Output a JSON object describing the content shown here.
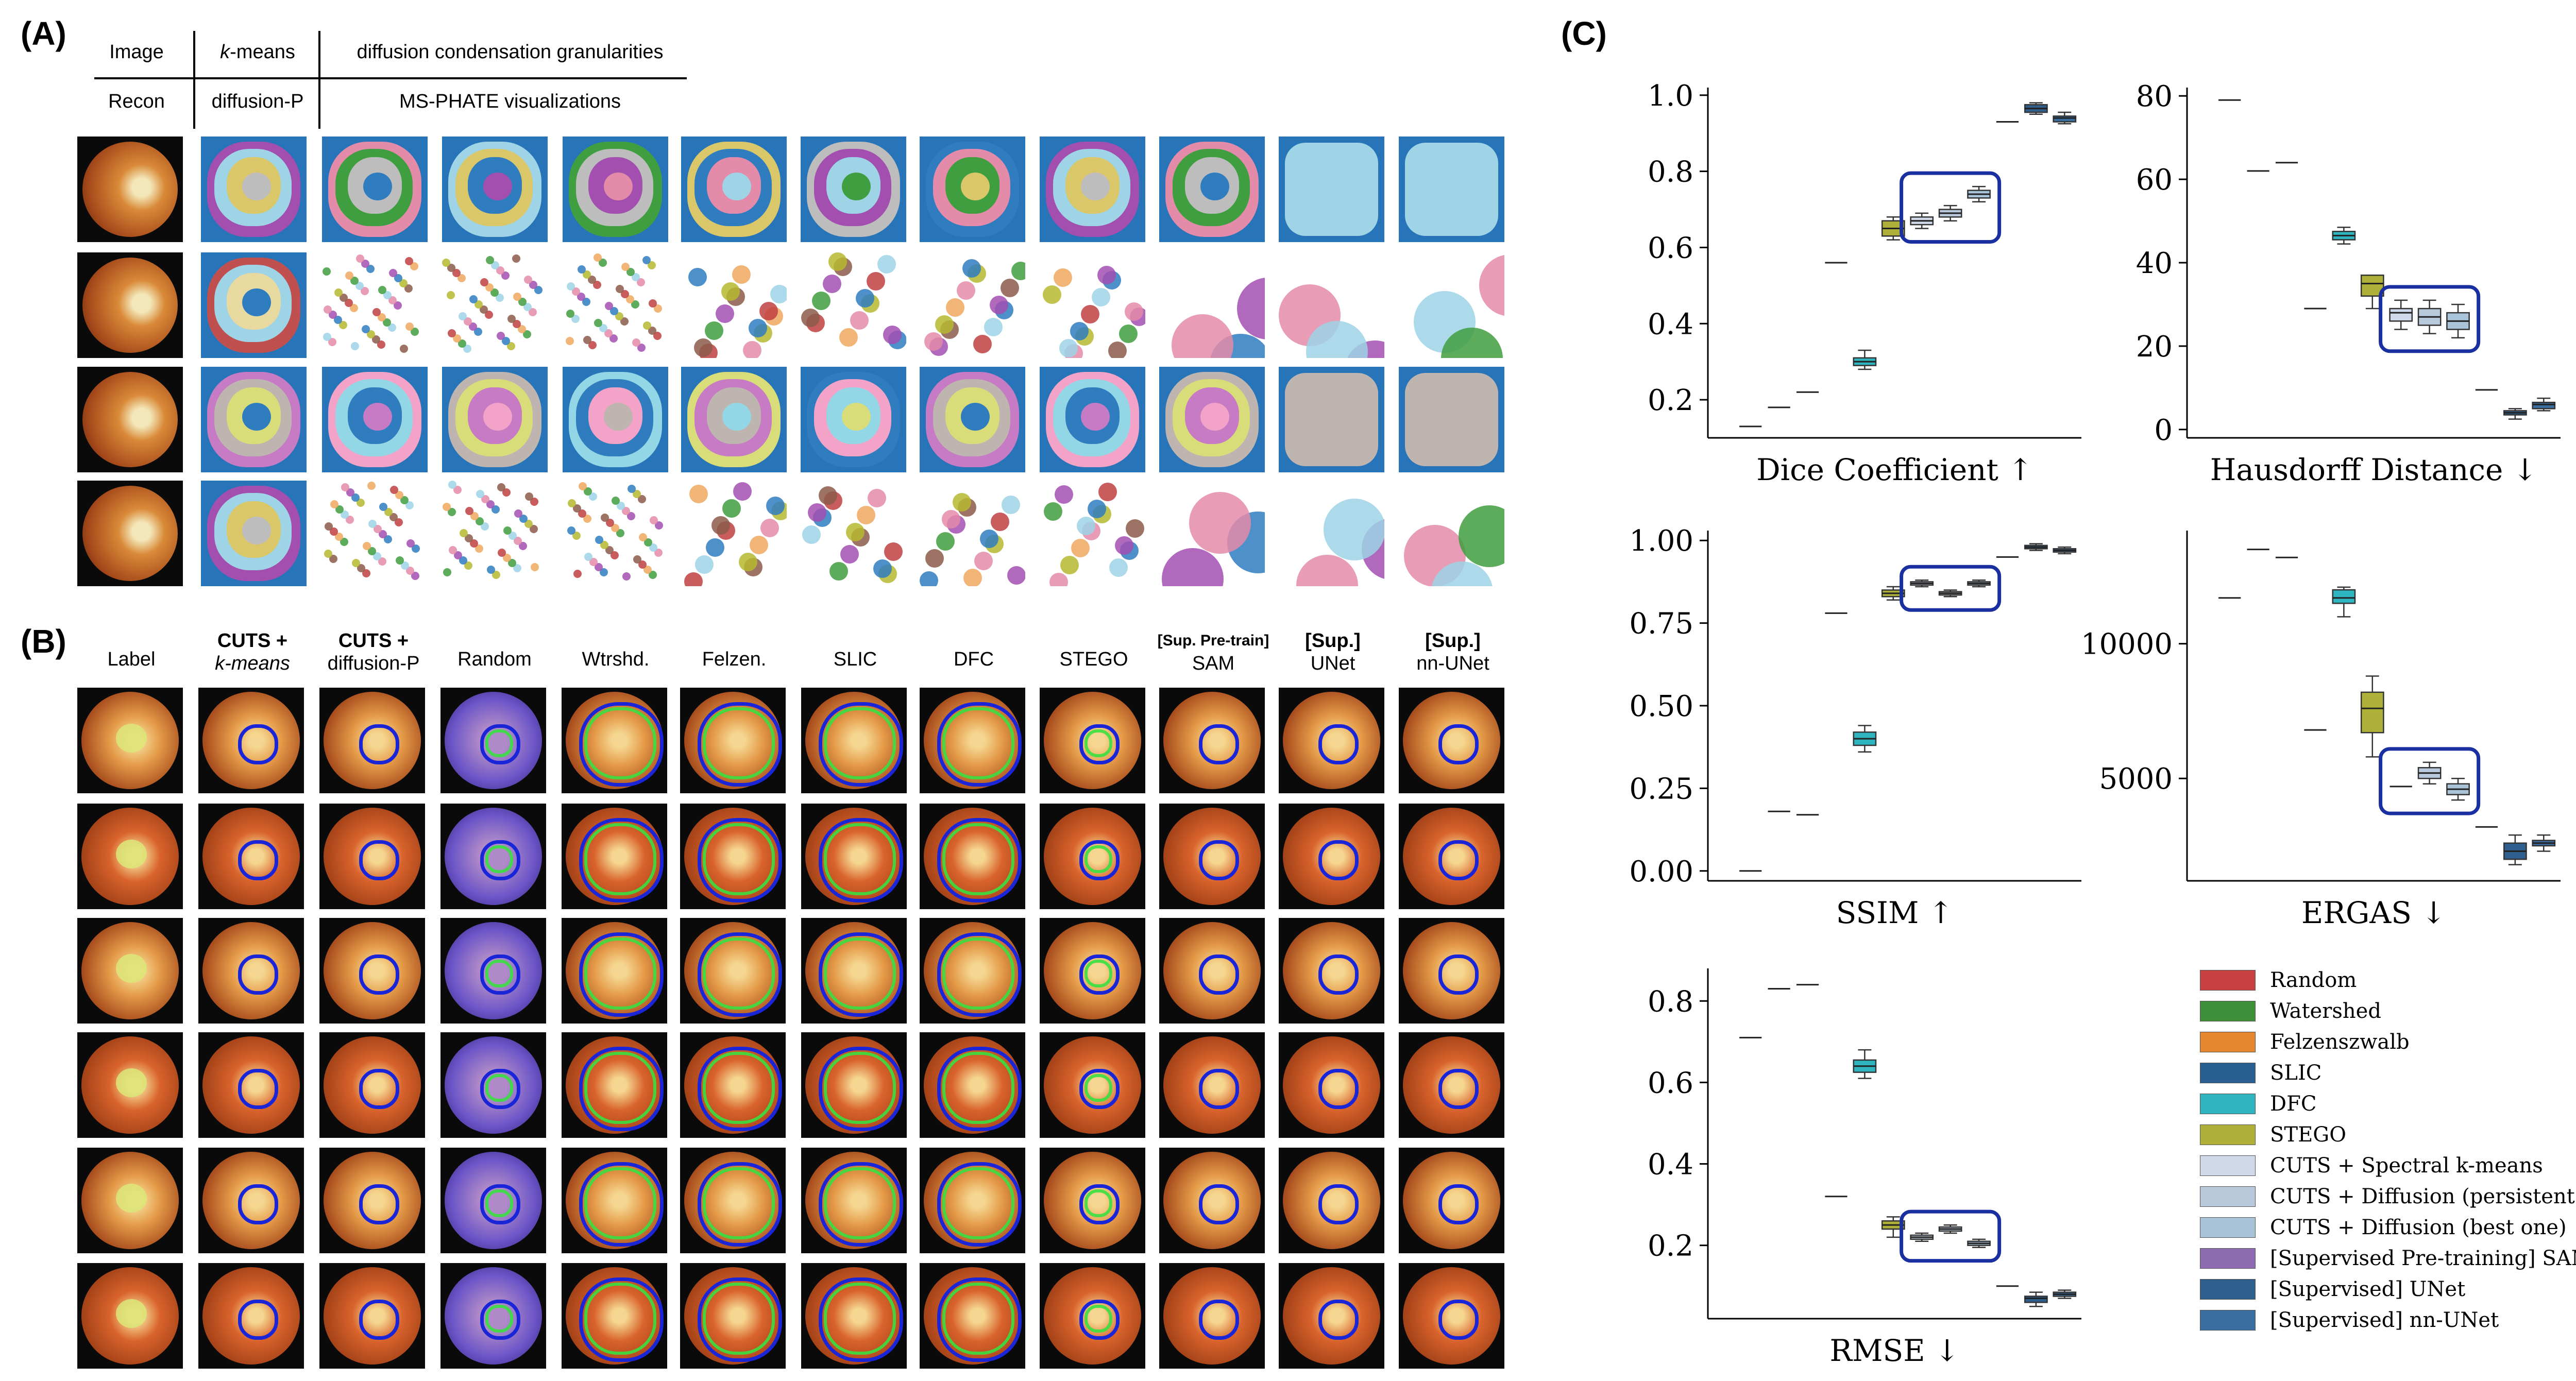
{
  "panel_labels": {
    "a": "(A)",
    "b": "(B)",
    "c": "(C)"
  },
  "panel_a": {
    "headers": {
      "image": "Image",
      "kmeans_prefix": "k",
      "kmeans_suffix": "-means",
      "diffusion_granularities": "diffusion condensation granularities",
      "recon": "Recon",
      "diffusion_p": "diffusion-P",
      "ms_phate": "MS-PHATE visualizations"
    }
  },
  "panel_b": {
    "columns": [
      {
        "line1": "Label",
        "line2": ""
      },
      {
        "line1": "CUTS +",
        "line2": "k-means"
      },
      {
        "line1": "CUTS +",
        "line2": "diffusion-P"
      },
      {
        "line1": "Random",
        "line2": ""
      },
      {
        "line1": "Wtrshd.",
        "line2": ""
      },
      {
        "line1": "Felzen.",
        "line2": ""
      },
      {
        "line1": "SLIC",
        "line2": ""
      },
      {
        "line1": "DFC",
        "line2": ""
      },
      {
        "line1": "STEGO",
        "line2": ""
      },
      {
        "line1": "[Sup. Pre-train]",
        "line2": "SAM"
      },
      {
        "line1": "[Sup.]",
        "line2": "UNet"
      },
      {
        "line1": "[Sup.]",
        "line2": "nn-UNet"
      }
    ]
  },
  "colors": {
    "random": "#c94040",
    "watershed": "#3f8f3a",
    "felzenszwalb": "#e6862e",
    "slic": "#2a5f91",
    "dfc": "#2fb5c0",
    "stego": "#aeb03a",
    "cuts_kmeans": "#cfd9ea",
    "cuts_persistent": "#b8c9dc",
    "cuts_best": "#a9c3d8",
    "sam": "#8e6bb0",
    "unet": "#2f5f8c",
    "nnunet": "#3b6ea0",
    "highlight": "#1a2fa0"
  },
  "chart_data": [
    {
      "type": "box",
      "title": "Dice Coefficient ↑",
      "ylim": [
        0.1,
        1.02
      ],
      "yticks": [
        0.2,
        0.4,
        0.6,
        0.8,
        1.0
      ],
      "ytick_labels": [
        "0.2",
        "0.4",
        "0.6",
        "0.8",
        "1.0"
      ],
      "series": [
        {
          "name": "Random",
          "median": 0.13,
          "q1": 0.13,
          "q3": 0.13,
          "lo": 0.13,
          "hi": 0.13
        },
        {
          "name": "Watershed",
          "median": 0.18,
          "q1": 0.18,
          "q3": 0.18,
          "lo": 0.18,
          "hi": 0.18
        },
        {
          "name": "Felzenszwalb",
          "median": 0.22,
          "q1": 0.22,
          "q3": 0.22,
          "lo": 0.22,
          "hi": 0.22
        },
        {
          "name": "SLIC",
          "median": 0.56,
          "q1": 0.56,
          "q3": 0.56,
          "lo": 0.56,
          "hi": 0.56
        },
        {
          "name": "DFC",
          "median": 0.3,
          "q1": 0.29,
          "q3": 0.31,
          "lo": 0.28,
          "hi": 0.33
        },
        {
          "name": "STEGO",
          "median": 0.65,
          "q1": 0.63,
          "q3": 0.67,
          "lo": 0.62,
          "hi": 0.68
        },
        {
          "name": "CUTS + Spectral k-means",
          "median": 0.67,
          "q1": 0.66,
          "q3": 0.68,
          "lo": 0.65,
          "hi": 0.69
        },
        {
          "name": "CUTS + Diffusion (persistent)",
          "median": 0.69,
          "q1": 0.68,
          "q3": 0.7,
          "lo": 0.67,
          "hi": 0.71
        },
        {
          "name": "CUTS + Diffusion (best one)",
          "median": 0.74,
          "q1": 0.73,
          "q3": 0.75,
          "lo": 0.72,
          "hi": 0.76
        },
        {
          "name": "[Supervised Pre-training] SAM",
          "median": 0.93,
          "q1": 0.93,
          "q3": 0.93,
          "lo": 0.93,
          "hi": 0.93
        },
        {
          "name": "[Supervised] UNet",
          "median": 0.965,
          "q1": 0.955,
          "q3": 0.975,
          "lo": 0.95,
          "hi": 0.98
        },
        {
          "name": "[Supervised] nn-UNet",
          "median": 0.94,
          "q1": 0.93,
          "q3": 0.945,
          "lo": 0.925,
          "hi": 0.955
        }
      ],
      "highlight_range": [
        6,
        8
      ]
    },
    {
      "type": "box",
      "title": "Hausdorff Distance ↓",
      "ylim": [
        -2,
        82
      ],
      "yticks": [
        0,
        20,
        40,
        60,
        80
      ],
      "ytick_labels": [
        "0",
        "20",
        "40",
        "60",
        "80"
      ],
      "series": [
        {
          "name": "Random",
          "median": 79,
          "q1": 79,
          "q3": 79,
          "lo": 79,
          "hi": 79
        },
        {
          "name": "Watershed",
          "median": 62,
          "q1": 62,
          "q3": 62,
          "lo": 62,
          "hi": 62
        },
        {
          "name": "Felzenszwalb",
          "median": 64,
          "q1": 64,
          "q3": 64,
          "lo": 64,
          "hi": 64
        },
        {
          "name": "SLIC",
          "median": 29,
          "q1": 29,
          "q3": 29,
          "lo": 29,
          "hi": 29
        },
        {
          "name": "DFC",
          "median": 46.5,
          "q1": 45.5,
          "q3": 47.5,
          "lo": 44.5,
          "hi": 48.5
        },
        {
          "name": "STEGO",
          "median": 35,
          "q1": 32,
          "q3": 37,
          "lo": 29,
          "hi": 37
        },
        {
          "name": "CUTS + Spectral k-means",
          "median": 28,
          "q1": 26,
          "q3": 29,
          "lo": 24,
          "hi": 31
        },
        {
          "name": "CUTS + Diffusion (persistent)",
          "median": 27,
          "q1": 25,
          "q3": 29,
          "lo": 23,
          "hi": 31
        },
        {
          "name": "CUTS + Diffusion (best one)",
          "median": 26,
          "q1": 24,
          "q3": 28,
          "lo": 22,
          "hi": 30
        },
        {
          "name": "[Supervised Pre-training] SAM",
          "median": 9.5,
          "q1": 9.5,
          "q3": 9.5,
          "lo": 9.5,
          "hi": 9.5
        },
        {
          "name": "[Supervised] UNet",
          "median": 4,
          "q1": 3.5,
          "q3": 4.5,
          "lo": 2.5,
          "hi": 5
        },
        {
          "name": "[Supervised] nn-UNet",
          "median": 6,
          "q1": 5,
          "q3": 6.5,
          "lo": 4.5,
          "hi": 7.5
        }
      ],
      "highlight_range": [
        6,
        8
      ]
    },
    {
      "type": "box",
      "title": "SSIM ↑",
      "ylim": [
        -0.03,
        1.03
      ],
      "yticks": [
        0.0,
        0.25,
        0.5,
        0.75,
        1.0
      ],
      "ytick_labels": [
        "0.00",
        "0.25",
        "0.50",
        "0.75",
        "1.00"
      ],
      "series": [
        {
          "name": "Random",
          "median": 0.0,
          "q1": 0.0,
          "q3": 0.0,
          "lo": 0.0,
          "hi": 0.0
        },
        {
          "name": "Watershed",
          "median": 0.18,
          "q1": 0.18,
          "q3": 0.18,
          "lo": 0.18,
          "hi": 0.18
        },
        {
          "name": "Felzenszwalb",
          "median": 0.17,
          "q1": 0.17,
          "q3": 0.17,
          "lo": 0.17,
          "hi": 0.17
        },
        {
          "name": "SLIC",
          "median": 0.78,
          "q1": 0.78,
          "q3": 0.78,
          "lo": 0.78,
          "hi": 0.78
        },
        {
          "name": "DFC",
          "median": 0.4,
          "q1": 0.38,
          "q3": 0.42,
          "lo": 0.36,
          "hi": 0.44
        },
        {
          "name": "STEGO",
          "median": 0.84,
          "q1": 0.83,
          "q3": 0.85,
          "lo": 0.82,
          "hi": 0.86
        },
        {
          "name": "CUTS + Spectral k-means",
          "median": 0.87,
          "q1": 0.865,
          "q3": 0.875,
          "lo": 0.86,
          "hi": 0.88
        },
        {
          "name": "CUTS + Diffusion (persistent)",
          "median": 0.84,
          "q1": 0.835,
          "q3": 0.845,
          "lo": 0.83,
          "hi": 0.85
        },
        {
          "name": "CUTS + Diffusion (best one)",
          "median": 0.87,
          "q1": 0.865,
          "q3": 0.875,
          "lo": 0.86,
          "hi": 0.88
        },
        {
          "name": "[Supervised Pre-training] SAM",
          "median": 0.95,
          "q1": 0.95,
          "q3": 0.95,
          "lo": 0.95,
          "hi": 0.95
        },
        {
          "name": "[Supervised] UNet",
          "median": 0.98,
          "q1": 0.975,
          "q3": 0.985,
          "lo": 0.97,
          "hi": 0.99
        },
        {
          "name": "[Supervised] nn-UNet",
          "median": 0.97,
          "q1": 0.965,
          "q3": 0.975,
          "lo": 0.96,
          "hi": 0.98
        }
      ],
      "highlight_range": [
        6,
        8
      ]
    },
    {
      "type": "box",
      "title": "ERGAS ↓",
      "ylim": [
        1200,
        14200
      ],
      "yticks": [
        5000,
        10000
      ],
      "ytick_labels": [
        "5000",
        "10000"
      ],
      "series": [
        {
          "name": "Random",
          "median": 11700,
          "q1": 11700,
          "q3": 11700,
          "lo": 11700,
          "hi": 11700
        },
        {
          "name": "Watershed",
          "median": 13500,
          "q1": 13500,
          "q3": 13500,
          "lo": 13500,
          "hi": 13500
        },
        {
          "name": "Felzenszwalb",
          "median": 13200,
          "q1": 13200,
          "q3": 13200,
          "lo": 13200,
          "hi": 13200
        },
        {
          "name": "SLIC",
          "median": 6800,
          "q1": 6800,
          "q3": 6800,
          "lo": 6800,
          "hi": 6800
        },
        {
          "name": "DFC",
          "median": 11700,
          "q1": 11500,
          "q3": 12000,
          "lo": 11000,
          "hi": 12100
        },
        {
          "name": "STEGO",
          "median": 7600,
          "q1": 6700,
          "q3": 8200,
          "lo": 5800,
          "hi": 8800
        },
        {
          "name": "CUTS + Spectral k-means",
          "median": 4700,
          "q1": 4700,
          "q3": 4700,
          "lo": 4700,
          "hi": 4700
        },
        {
          "name": "CUTS + Diffusion (persistent)",
          "median": 5200,
          "q1": 5000,
          "q3": 5400,
          "lo": 4800,
          "hi": 5600
        },
        {
          "name": "CUTS + Diffusion (best one)",
          "median": 4600,
          "q1": 4400,
          "q3": 4800,
          "lo": 4200,
          "hi": 5000
        },
        {
          "name": "[Supervised Pre-training] SAM",
          "median": 3200,
          "q1": 3200,
          "q3": 3200,
          "lo": 3200,
          "hi": 3200
        },
        {
          "name": "[Supervised] UNet",
          "median": 2300,
          "q1": 2000,
          "q3": 2600,
          "lo": 1800,
          "hi": 2900
        },
        {
          "name": "[Supervised] nn-UNet",
          "median": 2600,
          "q1": 2500,
          "q3": 2700,
          "lo": 2300,
          "hi": 2900
        }
      ],
      "highlight_range": [
        6,
        8
      ]
    },
    {
      "type": "box",
      "title": "RMSE ↓",
      "ylim": [
        0.02,
        0.88
      ],
      "yticks": [
        0.2,
        0.4,
        0.6,
        0.8
      ],
      "ytick_labels": [
        "0.2",
        "0.4",
        "0.6",
        "0.8"
      ],
      "series": [
        {
          "name": "Random",
          "median": 0.71,
          "q1": 0.71,
          "q3": 0.71,
          "lo": 0.71,
          "hi": 0.71
        },
        {
          "name": "Watershed",
          "median": 0.83,
          "q1": 0.83,
          "q3": 0.83,
          "lo": 0.83,
          "hi": 0.83
        },
        {
          "name": "Felzenszwalb",
          "median": 0.84,
          "q1": 0.84,
          "q3": 0.84,
          "lo": 0.84,
          "hi": 0.84
        },
        {
          "name": "SLIC",
          "median": 0.32,
          "q1": 0.32,
          "q3": 0.32,
          "lo": 0.32,
          "hi": 0.32
        },
        {
          "name": "DFC",
          "median": 0.64,
          "q1": 0.625,
          "q3": 0.655,
          "lo": 0.61,
          "hi": 0.68
        },
        {
          "name": "STEGO",
          "median": 0.25,
          "q1": 0.24,
          "q3": 0.26,
          "lo": 0.22,
          "hi": 0.27
        },
        {
          "name": "CUTS + Spectral k-means",
          "median": 0.22,
          "q1": 0.215,
          "q3": 0.225,
          "lo": 0.21,
          "hi": 0.23
        },
        {
          "name": "CUTS + Diffusion (persistent)",
          "median": 0.24,
          "q1": 0.235,
          "q3": 0.245,
          "lo": 0.23,
          "hi": 0.25
        },
        {
          "name": "CUTS + Diffusion (best one)",
          "median": 0.205,
          "q1": 0.2,
          "q3": 0.21,
          "lo": 0.195,
          "hi": 0.215
        },
        {
          "name": "[Supervised Pre-training] SAM",
          "median": 0.1,
          "q1": 0.1,
          "q3": 0.1,
          "lo": 0.1,
          "hi": 0.1
        },
        {
          "name": "[Supervised] UNet",
          "median": 0.07,
          "q1": 0.06,
          "q3": 0.075,
          "lo": 0.05,
          "hi": 0.085
        },
        {
          "name": "[Supervised] nn-UNet",
          "median": 0.08,
          "q1": 0.075,
          "q3": 0.085,
          "lo": 0.07,
          "hi": 0.09
        }
      ],
      "highlight_range": [
        6,
        8
      ]
    }
  ],
  "legend": [
    {
      "label": "Random",
      "color": "#c94040"
    },
    {
      "label": "Watershed",
      "color": "#3f8f3a"
    },
    {
      "label": "Felzenszwalb",
      "color": "#e6862e"
    },
    {
      "label": "SLIC",
      "color": "#2a5f91"
    },
    {
      "label": "DFC",
      "color": "#2fb5c0"
    },
    {
      "label": "STEGO",
      "color": "#aeb03a"
    },
    {
      "label": "CUTS + Spectral k-means",
      "color": "#cfd9ea"
    },
    {
      "label": "CUTS + Diffusion (persistent)",
      "color": "#b8c9dc"
    },
    {
      "label": "CUTS + Diffusion (best one)",
      "color": "#a9c3d8"
    },
    {
      "label": "[Supervised Pre-training] SAM",
      "color": "#8e6bb0"
    },
    {
      "label": "[Supervised] UNet",
      "color": "#2f5f8c"
    },
    {
      "label": "[Supervised] nn-UNet",
      "color": "#3b6ea0"
    }
  ]
}
